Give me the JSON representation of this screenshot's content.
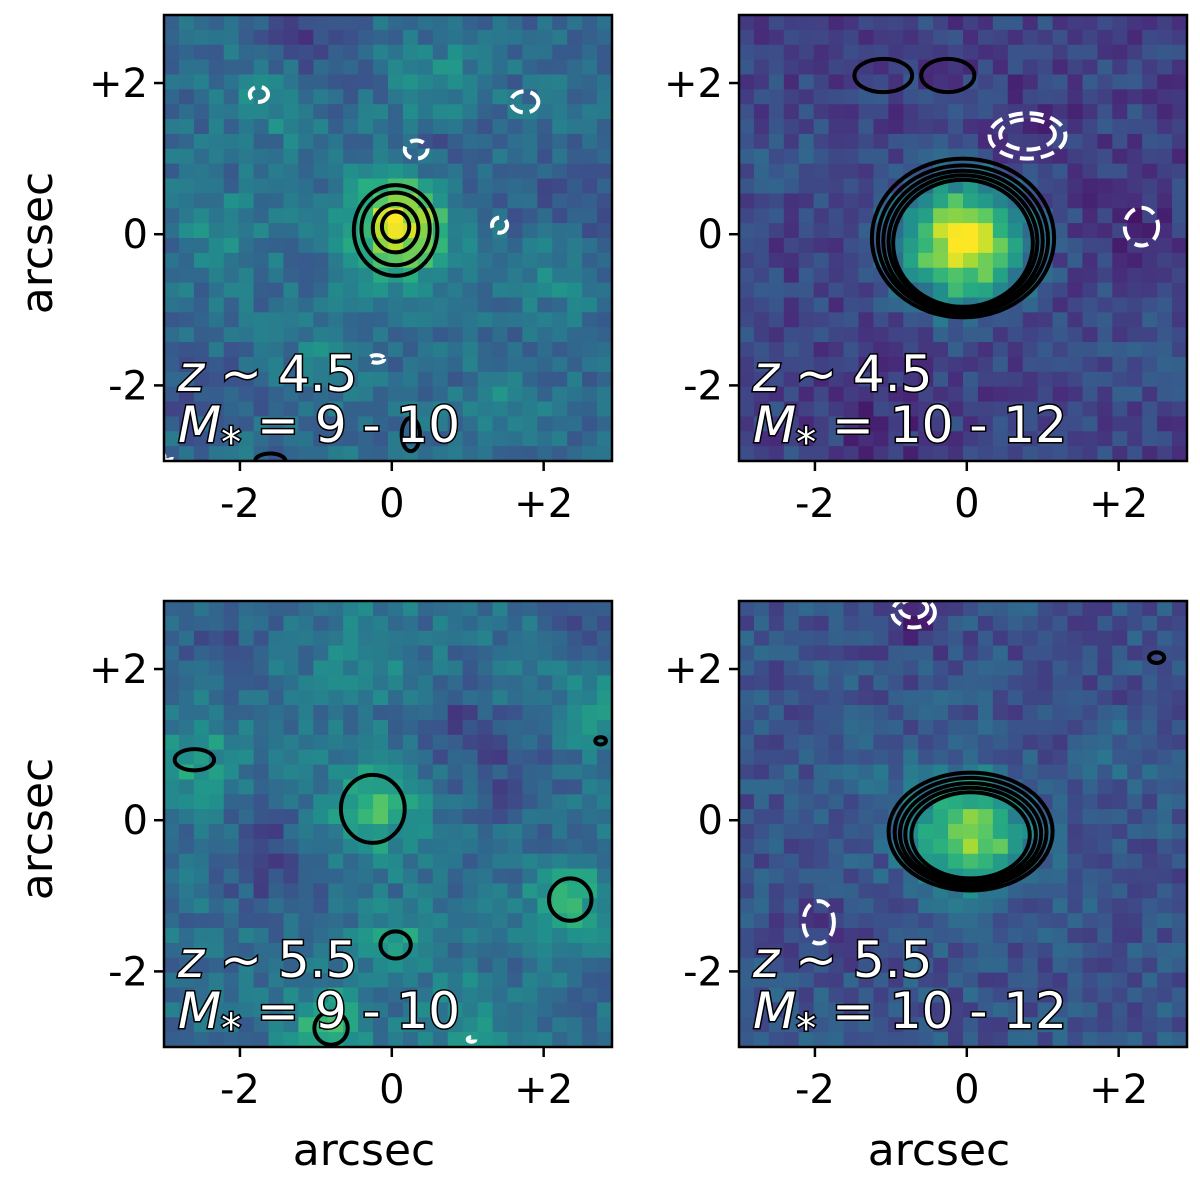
{
  "colors": {
    "colormap": [
      "#440154",
      "#472d7b",
      "#3b528b",
      "#2c728e",
      "#21918c",
      "#28ae80",
      "#5ec962",
      "#addc30",
      "#fde725"
    ],
    "positive_contour": "#000000",
    "negative_contour": "#ffffff"
  },
  "chart_data": [
    {
      "type": "heatmap",
      "panel": "top-left",
      "label_z": "z ~ 4.5",
      "label_z_var": "z",
      "label_z_rest": " ~ 4.5",
      "label_m_var": "M",
      "label_m_sub": "*",
      "label_m_rest": " = 9 - 10",
      "xlim": [
        -3.0,
        2.9
      ],
      "ylim": [
        -3.0,
        2.9
      ],
      "xticks": [
        -2,
        0,
        2
      ],
      "xtick_labels": [
        "-2",
        "0",
        "+2"
      ],
      "yticks": [
        -2,
        0,
        2
      ],
      "ytick_labels": [
        "-2",
        "0",
        "+2"
      ],
      "ylabel": "arcsec",
      "xlabel": "",
      "background_level": 0.35,
      "sources": [
        {
          "x": 0.1,
          "y": 0.1,
          "amp": 0.62,
          "sigma": 0.45
        },
        {
          "x": -1.5,
          "y": 1.8,
          "amp": 0.18,
          "sigma": 0.35
        },
        {
          "x": 0.6,
          "y": 2.0,
          "amp": 0.15,
          "sigma": 0.35
        },
        {
          "x": -2.2,
          "y": 0.0,
          "amp": 0.12,
          "sigma": 0.4
        },
        {
          "x": 2.2,
          "y": -0.5,
          "amp": 0.12,
          "sigma": 0.35
        },
        {
          "x": -0.8,
          "y": -1.4,
          "amp": 0.1,
          "sigma": 0.35
        },
        {
          "x": 1.5,
          "y": -2.3,
          "amp": 0.12,
          "sigma": 0.3
        }
      ],
      "holes": [
        {
          "x": -1.2,
          "y": 2.5,
          "amp": 0.15,
          "sigma": 0.4
        },
        {
          "x": 2.3,
          "y": 0.4,
          "amp": 0.12,
          "sigma": 0.4
        },
        {
          "x": 0.8,
          "y": 1.0,
          "amp": 0.1,
          "sigma": 0.35
        },
        {
          "x": -2.5,
          "y": -2.2,
          "amp": 0.1,
          "sigma": 0.4
        }
      ],
      "positive_contours": [
        {
          "x": 0.05,
          "y": 0.05,
          "rx": 0.55,
          "ry": 0.6
        },
        {
          "x": 0.05,
          "y": 0.07,
          "rx": 0.45,
          "ry": 0.48
        },
        {
          "x": 0.05,
          "y": 0.08,
          "rx": 0.3,
          "ry": 0.32
        },
        {
          "x": 0.05,
          "y": 0.1,
          "rx": 0.18,
          "ry": 0.2
        },
        {
          "x": 0.25,
          "y": -2.65,
          "rx": 0.12,
          "ry": 0.22
        },
        {
          "x": -1.6,
          "y": -3.0,
          "rx": 0.2,
          "ry": 0.1
        }
      ],
      "negative_contours": [
        {
          "x": -1.75,
          "y": 1.85,
          "rx": 0.12,
          "ry": 0.1
        },
        {
          "x": 1.75,
          "y": 1.75,
          "rx": 0.18,
          "ry": 0.14
        },
        {
          "x": 0.32,
          "y": 1.12,
          "rx": 0.15,
          "ry": 0.12
        },
        {
          "x": 1.42,
          "y": 0.12,
          "rx": 0.1,
          "ry": 0.1
        },
        {
          "x": -0.2,
          "y": -1.65,
          "rx": 0.1,
          "ry": 0.05
        },
        {
          "x": -2.95,
          "y": -2.95,
          "rx": 0.05,
          "ry": 0.04
        }
      ]
    },
    {
      "type": "heatmap",
      "panel": "top-right",
      "label_z_var": "z",
      "label_z_rest": " ~ 4.5",
      "label_m_var": "M",
      "label_m_sub": "*",
      "label_m_rest": " = 10 - 12",
      "xlim": [
        -3.0,
        2.9
      ],
      "ylim": [
        -3.0,
        2.9
      ],
      "xticks": [
        -2,
        0,
        2
      ],
      "xtick_labels": [
        "-2",
        "0",
        "+2"
      ],
      "yticks": [
        -2,
        0,
        2
      ],
      "ytick_labels": [
        "-2",
        "0",
        "+2"
      ],
      "ylabel": "",
      "xlabel": "",
      "background_level": 0.2,
      "sources": [
        {
          "x": -0.05,
          "y": -0.1,
          "amp": 0.78,
          "sigma": 0.55
        },
        {
          "x": 2.4,
          "y": -1.6,
          "amp": 0.08,
          "sigma": 0.4
        },
        {
          "x": -2.4,
          "y": 1.0,
          "amp": 0.06,
          "sigma": 0.5
        }
      ],
      "holes": [
        {
          "x": 0.8,
          "y": 1.3,
          "amp": 0.1,
          "sigma": 0.4
        },
        {
          "x": 2.2,
          "y": 0.3,
          "amp": 0.08,
          "sigma": 0.4
        },
        {
          "x": -1.0,
          "y": -2.5,
          "amp": 0.06,
          "sigma": 0.5
        }
      ],
      "positive_contours": [
        {
          "x": -0.05,
          "y": -0.05,
          "rx": 1.2,
          "ry": 1.05
        },
        {
          "x": -0.05,
          "y": -0.07,
          "rx": 1.12,
          "ry": 0.98
        },
        {
          "x": -0.05,
          "y": -0.09,
          "rx": 1.05,
          "ry": 0.93
        },
        {
          "x": -0.05,
          "y": -0.1,
          "rx": 0.98,
          "ry": 0.88
        },
        {
          "x": -0.05,
          "y": -0.12,
          "rx": 0.92,
          "ry": 0.84
        },
        {
          "x": -1.1,
          "y": 2.1,
          "rx": 0.38,
          "ry": 0.22
        },
        {
          "x": -0.25,
          "y": 2.1,
          "rx": 0.35,
          "ry": 0.22
        }
      ],
      "negative_contours": [
        {
          "x": 0.8,
          "y": 1.3,
          "rx": 0.5,
          "ry": 0.3
        },
        {
          "x": 0.8,
          "y": 1.32,
          "rx": 0.36,
          "ry": 0.2
        },
        {
          "x": 2.3,
          "y": 0.1,
          "rx": 0.22,
          "ry": 0.25
        }
      ]
    },
    {
      "type": "heatmap",
      "panel": "bottom-left",
      "label_z_var": "z",
      "label_z_rest": " ~ 5.5",
      "label_m_var": "M",
      "label_m_sub": "*",
      "label_m_rest": " = 9 - 10",
      "xlim": [
        -3.0,
        2.9
      ],
      "ylim": [
        -3.0,
        2.9
      ],
      "xticks": [
        -2,
        0,
        2
      ],
      "xtick_labels": [
        "-2",
        "0",
        "+2"
      ],
      "yticks": [
        -2,
        0,
        2
      ],
      "ytick_labels": [
        "-2",
        "0",
        "+2"
      ],
      "ylabel": "arcsec",
      "xlabel": "arcsec",
      "background_level": 0.36,
      "sources": [
        {
          "x": -0.25,
          "y": 0.15,
          "amp": 0.3,
          "sigma": 0.45
        },
        {
          "x": 2.35,
          "y": -1.05,
          "amp": 0.28,
          "sigma": 0.35
        },
        {
          "x": 0.05,
          "y": -1.65,
          "amp": 0.25,
          "sigma": 0.3
        },
        {
          "x": -0.85,
          "y": -2.75,
          "amp": 0.32,
          "sigma": 0.35
        },
        {
          "x": -2.6,
          "y": 0.8,
          "amp": 0.2,
          "sigma": 0.4
        },
        {
          "x": -0.3,
          "y": 2.2,
          "amp": 0.15,
          "sigma": 0.4
        },
        {
          "x": 2.7,
          "y": 1.5,
          "amp": 0.15,
          "sigma": 0.35
        },
        {
          "x": 1.0,
          "y": -2.6,
          "amp": 0.15,
          "sigma": 0.35
        }
      ],
      "holes": [
        {
          "x": -1.6,
          "y": -0.5,
          "amp": 0.16,
          "sigma": 0.45
        },
        {
          "x": 0.8,
          "y": 1.2,
          "amp": 0.14,
          "sigma": 0.4
        },
        {
          "x": 1.6,
          "y": 0.5,
          "amp": 0.12,
          "sigma": 0.4
        },
        {
          "x": -2.4,
          "y": 2.3,
          "amp": 0.1,
          "sigma": 0.4
        },
        {
          "x": 2.6,
          "y": 2.6,
          "amp": 0.12,
          "sigma": 0.35
        }
      ],
      "positive_contours": [
        {
          "x": -0.25,
          "y": 0.15,
          "rx": 0.42,
          "ry": 0.45
        },
        {
          "x": 2.35,
          "y": -1.05,
          "rx": 0.28,
          "ry": 0.28
        },
        {
          "x": 0.05,
          "y": -1.65,
          "rx": 0.2,
          "ry": 0.18
        },
        {
          "x": -0.8,
          "y": -2.75,
          "rx": 0.22,
          "ry": 0.22
        },
        {
          "x": -2.6,
          "y": 0.8,
          "rx": 0.26,
          "ry": 0.14
        },
        {
          "x": 2.75,
          "y": 1.05,
          "rx": 0.07,
          "ry": 0.05
        }
      ],
      "negative_contours": [
        {
          "x": 1.05,
          "y": -2.9,
          "rx": 0.05,
          "ry": 0.03
        }
      ]
    },
    {
      "type": "heatmap",
      "panel": "bottom-right",
      "label_z_var": "z",
      "label_z_rest": " ~ 5.5",
      "label_m_var": "M",
      "label_m_sub": "*",
      "label_m_rest": " = 10 - 12",
      "xlim": [
        -3.0,
        2.9
      ],
      "ylim": [
        -3.0,
        2.9
      ],
      "xticks": [
        -2,
        0,
        2
      ],
      "xtick_labels": [
        "-2",
        "0",
        "+2"
      ],
      "yticks": [
        -2,
        0,
        2
      ],
      "ytick_labels": [
        "-2",
        "0",
        "+2"
      ],
      "ylabel": "",
      "xlabel": "arcsec",
      "background_level": 0.26,
      "sources": [
        {
          "x": 0.05,
          "y": -0.2,
          "amp": 0.58,
          "sigma": 0.5
        },
        {
          "x": 2.2,
          "y": 0.9,
          "amp": 0.07,
          "sigma": 0.4
        },
        {
          "x": -1.2,
          "y": 0.6,
          "amp": 0.06,
          "sigma": 0.45
        }
      ],
      "holes": [
        {
          "x": -0.7,
          "y": 2.7,
          "amp": 0.14,
          "sigma": 0.35
        },
        {
          "x": -1.9,
          "y": -1.4,
          "amp": 0.1,
          "sigma": 0.35
        },
        {
          "x": 1.4,
          "y": 1.9,
          "amp": 0.06,
          "sigma": 0.5
        }
      ],
      "positive_contours": [
        {
          "x": 0.05,
          "y": -0.15,
          "rx": 1.08,
          "ry": 0.78
        },
        {
          "x": 0.05,
          "y": -0.16,
          "rx": 1.0,
          "ry": 0.72
        },
        {
          "x": 0.05,
          "y": -0.18,
          "rx": 0.93,
          "ry": 0.67
        },
        {
          "x": 0.05,
          "y": -0.19,
          "rx": 0.86,
          "ry": 0.62
        },
        {
          "x": 0.05,
          "y": -0.2,
          "rx": 0.78,
          "ry": 0.57
        },
        {
          "x": 2.5,
          "y": 2.15,
          "rx": 0.1,
          "ry": 0.07
        }
      ],
      "negative_contours": [
        {
          "x": -0.7,
          "y": 2.75,
          "rx": 0.28,
          "ry": 0.2
        },
        {
          "x": -0.7,
          "y": 2.8,
          "rx": 0.18,
          "ry": 0.12
        },
        {
          "x": -1.95,
          "y": -1.35,
          "rx": 0.2,
          "ry": 0.28
        }
      ]
    }
  ]
}
